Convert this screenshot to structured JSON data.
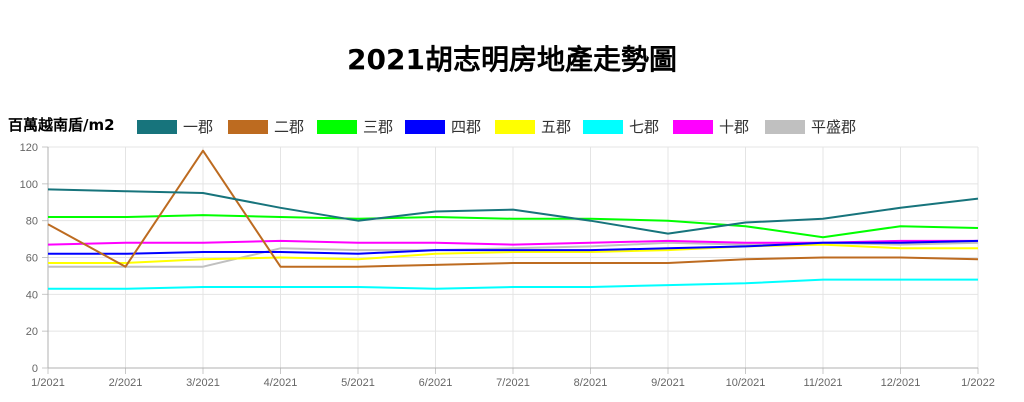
{
  "chart_data": {
    "type": "line",
    "title": "2021胡志明房地產走勢圖",
    "ylabel": "百萬越南盾/m2",
    "xlabel": "",
    "ylim": [
      0,
      120
    ],
    "yticks": [
      0,
      20,
      40,
      60,
      80,
      100,
      120
    ],
    "grid": true,
    "legend_position": "top",
    "categories": [
      "1/2021",
      "2/2021",
      "3/2021",
      "4/2021",
      "5/2021",
      "6/2021",
      "7/2021",
      "8/2021",
      "9/2021",
      "10/2021",
      "11/2021",
      "12/2021",
      "1/2022"
    ],
    "series": [
      {
        "name": "一郡",
        "color": "#17747c",
        "values": [
          97,
          96,
          95,
          87,
          80,
          85,
          86,
          80,
          73,
          79,
          81,
          87,
          92
        ]
      },
      {
        "name": "二郡",
        "color": "#bd6b20",
        "values": [
          78,
          55,
          118,
          55,
          55,
          56,
          57,
          57,
          57,
          59,
          60,
          60,
          59
        ]
      },
      {
        "name": "三郡",
        "color": "#00ff00",
        "values": [
          82,
          82,
          83,
          82,
          81,
          82,
          81,
          81,
          80,
          77,
          71,
          77,
          76
        ]
      },
      {
        "name": "四郡",
        "color": "#0000ff",
        "values": [
          62,
          62,
          63,
          63,
          62,
          64,
          64,
          64,
          65,
          66,
          68,
          68,
          69
        ]
      },
      {
        "name": "五郡",
        "color": "#ffff00",
        "values": [
          57,
          57,
          59,
          60,
          59,
          62,
          63,
          63,
          64,
          66,
          67,
          65,
          65
        ]
      },
      {
        "name": "七郡",
        "color": "#00ffff",
        "values": [
          43,
          43,
          44,
          44,
          44,
          43,
          44,
          44,
          45,
          46,
          48,
          48,
          48
        ]
      },
      {
        "name": "十郡",
        "color": "#ff00ff",
        "values": [
          67,
          68,
          68,
          69,
          68,
          68,
          67,
          68,
          69,
          68,
          68,
          69,
          69
        ]
      },
      {
        "name": "平盛郡",
        "color": "#c0c0c0",
        "values": [
          55,
          55,
          55,
          65,
          64,
          64,
          65,
          66,
          68,
          67,
          68,
          67,
          68
        ]
      }
    ]
  }
}
